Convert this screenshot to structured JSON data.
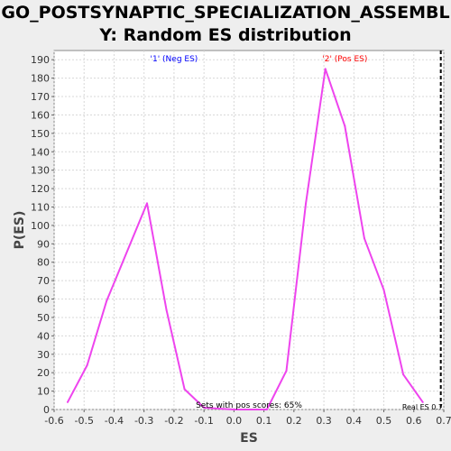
{
  "title": {
    "line1": "GO_POSTSYNAPTIC_SPECIALIZATION_ASSEMBL",
    "line2": "Y: Random ES distribution"
  },
  "chart_data": {
    "type": "line",
    "xlabel": "ES",
    "ylabel": "P(ES)",
    "xlim": [
      -0.6,
      0.7
    ],
    "ylim": [
      0,
      195
    ],
    "xticks": [
      -0.6,
      -0.5,
      -0.4,
      -0.3,
      -0.2,
      -0.1,
      0.0,
      0.1,
      0.2,
      0.3,
      0.4,
      0.5,
      0.6,
      0.7
    ],
    "yticks": [
      0,
      10,
      20,
      30,
      40,
      50,
      60,
      70,
      80,
      90,
      100,
      110,
      120,
      130,
      140,
      150,
      160,
      170,
      180,
      190
    ],
    "grid": true,
    "series": [
      {
        "name": "",
        "color": "#ee44ee",
        "x": [
          -0.555,
          -0.49,
          -0.425,
          -0.29,
          -0.225,
          -0.165,
          -0.1,
          0.0,
          0.11,
          0.175,
          0.24,
          0.305,
          0.37,
          0.435,
          0.5,
          0.565,
          0.63
        ],
        "y": [
          4,
          24,
          59,
          112,
          54,
          11,
          1,
          0,
          0,
          21,
          112,
          185,
          154,
          93,
          65,
          19,
          4
        ]
      }
    ],
    "annotations": [
      {
        "text": "'1' (Neg ES)",
        "x": -0.2,
        "y": 191,
        "color": "#0000ff"
      },
      {
        "text": "'2' (Pos ES)",
        "x": 0.37,
        "y": 191,
        "color": "#ff0000"
      },
      {
        "text": "Sets with pos scores: 65%",
        "x": 0.05,
        "y": 3,
        "color": "#000000"
      },
      {
        "text": "Real ES 0.7",
        "x": 0.6,
        "y": 2,
        "color": "#000000"
      }
    ],
    "reference_line": {
      "x": 0.69,
      "style": "dashed",
      "color": "#000000"
    }
  }
}
